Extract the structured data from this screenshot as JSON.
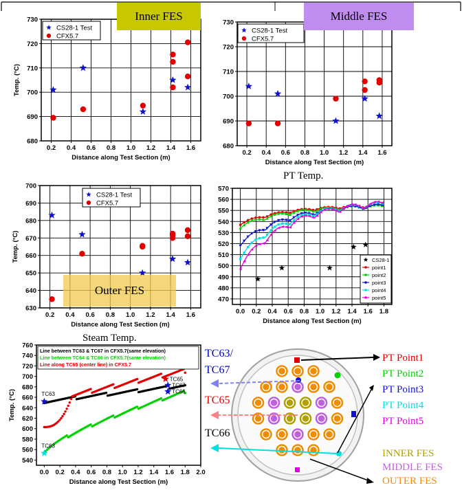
{
  "colors": {
    "inner_tag": "#c8c800",
    "middle_tag": "#c08cf0",
    "outer_tag": "#f2c94c",
    "test": "#1010d0",
    "cfx": "#e00000",
    "black": "#000000",
    "green": "#00d000",
    "cyan": "#00e0e0",
    "magenta": "#e000e0",
    "olive": "#b0a000",
    "violet": "#c060e0",
    "orange": "#f08c00"
  },
  "tags": {
    "inner": "Inner FES",
    "middle": "Middle FES",
    "outer": "Outer FES"
  },
  "captions": {
    "pt_temp": "PT Temp.",
    "steam_temp": "Steam Temp."
  },
  "schematic": {
    "tc_labels": [
      "TC63/",
      "TC67",
      "TC65",
      "TC66"
    ],
    "pt_labels": [
      "PT Point1",
      "PT Point2",
      "PT Point3",
      "PT Point4",
      "PT Point5"
    ],
    "fes_labels": [
      "INNER FES",
      "MIDDLE FES",
      "OUTER FES"
    ]
  },
  "chart_data": [
    {
      "id": "inner",
      "type": "scatter",
      "xlabel": "Distance along Test Section (m)",
      "ylabel": "Temp. (°C)",
      "xlim": [
        0.1,
        1.7
      ],
      "ylim": [
        680,
        730
      ],
      "xticks": [
        "0.2",
        "0.4",
        "0.6",
        "0.8",
        "1.0",
        "1.2",
        "1.4",
        "1.6"
      ],
      "yticks": [
        "680",
        "690",
        "700",
        "710",
        "720",
        "730"
      ],
      "legend": "top-left",
      "grid": true,
      "series": [
        {
          "name": "CS28-1 Test",
          "marker": "star",
          "x": [
            0.22,
            0.52,
            1.12,
            1.42,
            1.57
          ],
          "y": [
            701,
            710,
            692,
            705,
            702
          ]
        },
        {
          "name": "CFX5.7",
          "marker": "circle",
          "x": [
            0.22,
            0.52,
            1.12,
            1.42,
            1.42,
            1.42,
            1.57,
            1.57
          ],
          "y": [
            689.5,
            693,
            694.5,
            702,
            712.5,
            715.5,
            706.5,
            720.5
          ]
        }
      ]
    },
    {
      "id": "middle",
      "type": "scatter",
      "xlabel": "Distance along Test Section (m)",
      "ylabel": "",
      "xlim": [
        0.1,
        1.7
      ],
      "ylim": [
        680,
        730
      ],
      "xticks": [
        "0.2",
        "0.4",
        "0.6",
        "0.8",
        "1.0",
        "1.2",
        "1.4",
        "1.6"
      ],
      "yticks": [
        "680",
        "690",
        "700",
        "710",
        "720",
        "730"
      ],
      "legend": "top-left",
      "grid": true,
      "series": [
        {
          "name": "CS28-1 Test",
          "marker": "star",
          "x": [
            0.22,
            0.52,
            1.12,
            1.42,
            1.57
          ],
          "y": [
            704,
            701,
            690,
            699,
            692
          ]
        },
        {
          "name": "CFX5.7",
          "marker": "circle",
          "x": [
            0.22,
            0.52,
            1.12,
            1.42,
            1.42,
            1.57,
            1.57
          ],
          "y": [
            689,
            689,
            699,
            702.5,
            706,
            705.5,
            706.5
          ]
        }
      ]
    },
    {
      "id": "outer",
      "type": "scatter",
      "xlabel": "Distance along Test Section (m)",
      "ylabel": "Temp. (°C)",
      "xlim": [
        0.1,
        1.7
      ],
      "ylim": [
        630,
        700
      ],
      "xticks": [
        "0.2",
        "0.4",
        "0.6",
        "0.8",
        "1.0",
        "1.2",
        "1.4",
        "1.6"
      ],
      "yticks": [
        "630",
        "640",
        "650",
        "660",
        "670",
        "680",
        "690",
        "700"
      ],
      "legend": "top-right",
      "grid": true,
      "series": [
        {
          "name": "CS28-1 Test",
          "marker": "star",
          "x": [
            0.22,
            0.52,
            1.12,
            1.42,
            1.57
          ],
          "y": [
            683,
            672,
            650,
            658,
            656
          ]
        },
        {
          "name": "CFX5.7",
          "marker": "circle",
          "x": [
            0.22,
            0.52,
            1.12,
            1.12,
            1.42,
            1.42,
            1.42,
            1.57,
            1.57
          ],
          "y": [
            635,
            661,
            665,
            665.5,
            670,
            671.5,
            672.5,
            671,
            674.5
          ]
        }
      ]
    },
    {
      "id": "pt",
      "type": "line",
      "xlabel": "Distance along Test Section (m)",
      "ylabel": "",
      "xlim": [
        -0.1,
        1.9
      ],
      "ylim": [
        465,
        570
      ],
      "xticks": [
        "0.0",
        "0.2",
        "0.4",
        "0.6",
        "0.8",
        "1.0",
        "1.2",
        "1.4",
        "1.6",
        "1.8"
      ],
      "yticks": [
        "470",
        "480",
        "490",
        "500",
        "510",
        "520",
        "530",
        "540",
        "550",
        "560",
        "570"
      ],
      "legend": "bottom-right",
      "grid": true,
      "series": [
        {
          "name": "CS28-1",
          "marker": "star",
          "x": [
            0.22,
            0.52,
            1.12,
            1.42,
            1.57
          ],
          "y": [
            488,
            498,
            498,
            517,
            519
          ]
        },
        {
          "name": "point1",
          "start": 537,
          "end": 553
        },
        {
          "name": "point2",
          "start": 534,
          "end": 552
        },
        {
          "name": "point3",
          "start": 518,
          "end": 552
        },
        {
          "name": "point4",
          "start": 506,
          "end": 553
        },
        {
          "name": "point5",
          "start": 497,
          "end": 553
        }
      ]
    },
    {
      "id": "steam",
      "type": "line",
      "xlabel": "Distance along Test Section (m)",
      "ylabel": "Temp. (°C)",
      "xlim": [
        -0.1,
        2.0
      ],
      "ylim": [
        530,
        760
      ],
      "xticks": [
        "0.0",
        "0.2",
        "0.4",
        "0.6",
        "0.8",
        "1.0",
        "1.2",
        "1.4",
        "1.6",
        "1.8",
        "2.0"
      ],
      "yticks": [
        "540",
        "560",
        "580",
        "600",
        "620",
        "640",
        "660",
        "680",
        "700",
        "720",
        "740",
        "760"
      ],
      "legend": "top-left",
      "grid": false,
      "series": [
        {
          "name": "Line between TC63 & TC67 in CFX5.7(same elevation)",
          "start": 652,
          "end": 683
        },
        {
          "name": "Line between TC64 & TC66 in CFX5.7(same elevation)",
          "start": 553,
          "end": 668
        },
        {
          "name": "Line along TC65 (center line) in CFX5.7",
          "start": 603,
          "end": 707
        }
      ],
      "points": [
        {
          "label": "TC63",
          "x": 0.0,
          "y": 652,
          "marker": "star"
        },
        {
          "label": "TC63",
          "x": 0.0,
          "y": 553,
          "marker": "star"
        },
        {
          "label": "TC65",
          "x": 1.55,
          "y": 695,
          "marker": "star"
        },
        {
          "label": "TC67",
          "x": 1.58,
          "y": 683,
          "marker": "star"
        },
        {
          "label": "TC66",
          "x": 1.58,
          "y": 671,
          "marker": "star"
        }
      ]
    }
  ]
}
